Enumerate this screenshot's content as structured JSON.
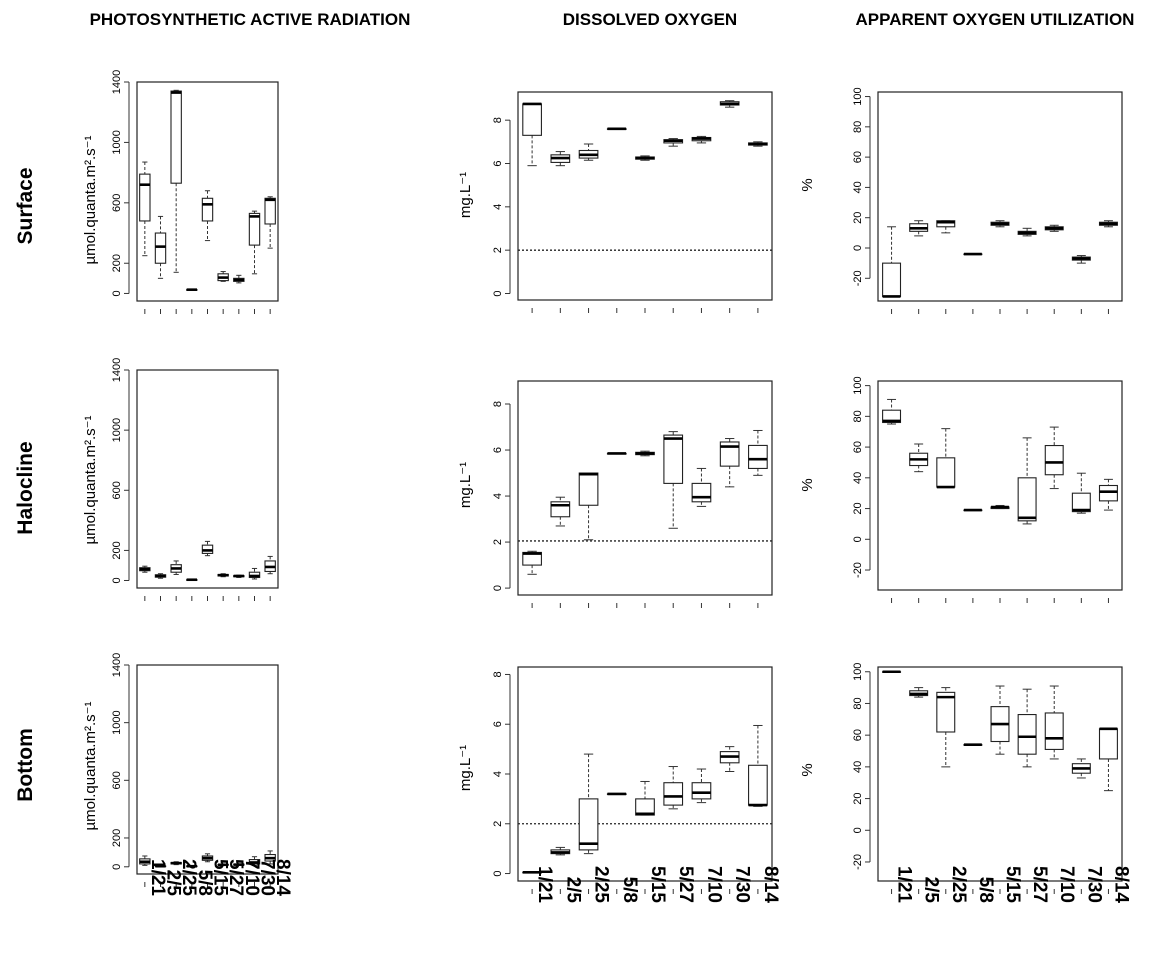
{
  "column_titles": [
    "PHOTOSYNTHETIC  ACTIVE RADIATION",
    "DISSOLVED OXYGEN",
    "APPARENT OXYGEN UTILIZATION"
  ],
  "row_titles": [
    "Surface",
    "Halocline",
    "Bottom"
  ],
  "ylabels": {
    "par": "µmol.quanta.m².s⁻¹",
    "do": "mg.L⁻¹",
    "aou": "%"
  },
  "chart_data": [
    {
      "type": "box",
      "panel": "PAR-Surface",
      "ylabel": "µmol.quanta.m².s⁻¹",
      "ylim": [
        -50,
        1400
      ],
      "yticks": [
        0,
        200,
        600,
        1000,
        1400
      ],
      "grid": false,
      "categories": [
        "1/21",
        "2/5",
        "2/25",
        "5/8",
        "5/15",
        "5/27",
        "7/10",
        "7/30",
        "8/14"
      ],
      "boxes": [
        {
          "min": 250,
          "q1": 480,
          "median": 720,
          "q3": 790,
          "max": 870
        },
        {
          "min": 100,
          "q1": 200,
          "median": 310,
          "q3": 400,
          "max": 510
        },
        {
          "min": 140,
          "q1": 730,
          "median": 1330,
          "q3": 1340,
          "max": 1345
        },
        {
          "min": 25,
          "q1": 25,
          "median": 25,
          "q3": 25,
          "max": 25
        },
        {
          "min": 350,
          "q1": 480,
          "median": 590,
          "q3": 630,
          "max": 680
        },
        {
          "min": 80,
          "q1": 85,
          "median": 105,
          "q3": 130,
          "max": 145
        },
        {
          "min": 70,
          "q1": 80,
          "median": 90,
          "q3": 100,
          "max": 120
        },
        {
          "min": 130,
          "q1": 320,
          "median": 510,
          "q3": 530,
          "max": 545
        },
        {
          "min": 300,
          "q1": 460,
          "median": 620,
          "q3": 630,
          "max": 640
        }
      ]
    },
    {
      "type": "box",
      "panel": "DO-Surface",
      "ylabel": "mg.L⁻¹",
      "ylim": [
        -0.3,
        9.3
      ],
      "yticks": [
        0,
        2,
        4,
        6,
        8
      ],
      "hline": 2,
      "grid": false,
      "categories": [
        "1/21",
        "2/5",
        "2/25",
        "5/8",
        "5/15",
        "5/27",
        "7/10",
        "7/30",
        "8/14"
      ],
      "boxes": [
        {
          "min": 5.9,
          "q1": 7.3,
          "median": 8.75,
          "q3": 8.75,
          "max": 8.75
        },
        {
          "min": 5.9,
          "q1": 6.05,
          "median": 6.25,
          "q3": 6.4,
          "max": 6.55
        },
        {
          "min": 6.15,
          "q1": 6.25,
          "median": 6.4,
          "q3": 6.6,
          "max": 6.9
        },
        {
          "min": 7.6,
          "q1": 7.6,
          "median": 7.6,
          "q3": 7.6,
          "max": 7.6
        },
        {
          "min": 6.15,
          "q1": 6.2,
          "median": 6.25,
          "q3": 6.3,
          "max": 6.35
        },
        {
          "min": 6.8,
          "q1": 6.95,
          "median": 7.05,
          "q3": 7.1,
          "max": 7.15
        },
        {
          "min": 6.95,
          "q1": 7.05,
          "median": 7.15,
          "q3": 7.2,
          "max": 7.25
        },
        {
          "min": 8.6,
          "q1": 8.7,
          "median": 8.75,
          "q3": 8.85,
          "max": 8.9
        },
        {
          "min": 6.8,
          "q1": 6.85,
          "median": 6.9,
          "q3": 6.95,
          "max": 7.0
        }
      ]
    },
    {
      "type": "box",
      "panel": "AOU-Surface",
      "ylabel": "%",
      "ylim": [
        -35,
        103
      ],
      "yticks": [
        -20,
        0,
        20,
        40,
        60,
        80,
        100
      ],
      "grid": false,
      "categories": [
        "1/21",
        "2/5",
        "2/25",
        "5/8",
        "5/15",
        "5/27",
        "7/10",
        "7/30",
        "8/14"
      ],
      "boxes": [
        {
          "min": -32,
          "q1": -32,
          "median": -32,
          "q3": -10,
          "max": 14
        },
        {
          "min": 8,
          "q1": 11,
          "median": 13,
          "q3": 16,
          "max": 18
        },
        {
          "min": 10,
          "q1": 14,
          "median": 17,
          "q3": 18,
          "max": 18
        },
        {
          "min": -4,
          "q1": -4,
          "median": -4,
          "q3": -4,
          "max": -4
        },
        {
          "min": 14,
          "q1": 15,
          "median": 16,
          "q3": 17,
          "max": 18
        },
        {
          "min": 8,
          "q1": 9,
          "median": 10,
          "q3": 11,
          "max": 13
        },
        {
          "min": 11,
          "q1": 12,
          "median": 13,
          "q3": 14,
          "max": 15
        },
        {
          "min": -10,
          "q1": -8,
          "median": -7,
          "q3": -6,
          "max": -5
        },
        {
          "min": 14,
          "q1": 15,
          "median": 16,
          "q3": 17,
          "max": 18
        }
      ]
    },
    {
      "type": "box",
      "panel": "PAR-Halocline",
      "ylabel": "µmol.quanta.m².s⁻¹",
      "ylim": [
        -50,
        1400
      ],
      "yticks": [
        0,
        200,
        600,
        1000,
        1400
      ],
      "grid": false,
      "categories": [
        "1/21",
        "2/5",
        "2/25",
        "5/8",
        "5/15",
        "5/27",
        "7/10",
        "7/30",
        "8/14"
      ],
      "boxes": [
        {
          "min": 55,
          "q1": 65,
          "median": 75,
          "q3": 85,
          "max": 95
        },
        {
          "min": 15,
          "q1": 22,
          "median": 30,
          "q3": 38,
          "max": 45
        },
        {
          "min": 40,
          "q1": 55,
          "median": 80,
          "q3": 105,
          "max": 130
        },
        {
          "min": 5,
          "q1": 5,
          "median": 5,
          "q3": 5,
          "max": 5
        },
        {
          "min": 165,
          "q1": 180,
          "median": 200,
          "q3": 235,
          "max": 260
        },
        {
          "min": 25,
          "q1": 30,
          "median": 35,
          "q3": 40,
          "max": 45
        },
        {
          "min": 20,
          "q1": 25,
          "median": 30,
          "q3": 32,
          "max": 35
        },
        {
          "min": 10,
          "q1": 20,
          "median": 30,
          "q3": 55,
          "max": 80
        },
        {
          "min": 45,
          "q1": 60,
          "median": 90,
          "q3": 130,
          "max": 160
        }
      ]
    },
    {
      "type": "box",
      "panel": "DO-Halocline",
      "ylabel": "mg.L⁻¹",
      "ylim": [
        -0.3,
        9.0
      ],
      "yticks": [
        0,
        2,
        4,
        6,
        8
      ],
      "hline": 2.05,
      "grid": false,
      "categories": [
        "1/21",
        "2/5",
        "2/25",
        "5/8",
        "5/15",
        "5/27",
        "7/10",
        "7/30",
        "8/14"
      ],
      "boxes": [
        {
          "min": 0.6,
          "q1": 1.0,
          "median": 1.5,
          "q3": 1.55,
          "max": 1.6
        },
        {
          "min": 2.7,
          "q1": 3.1,
          "median": 3.6,
          "q3": 3.75,
          "max": 3.95
        },
        {
          "min": 2.1,
          "q1": 3.6,
          "median": 4.95,
          "q3": 5.0,
          "max": 5.0
        },
        {
          "min": 5.85,
          "q1": 5.85,
          "median": 5.85,
          "q3": 5.85,
          "max": 5.85
        },
        {
          "min": 5.75,
          "q1": 5.8,
          "median": 5.85,
          "q3": 5.9,
          "max": 5.95
        },
        {
          "min": 2.6,
          "q1": 4.55,
          "median": 6.5,
          "q3": 6.65,
          "max": 6.8
        },
        {
          "min": 3.55,
          "q1": 3.75,
          "median": 3.95,
          "q3": 4.55,
          "max": 5.2
        },
        {
          "min": 4.4,
          "q1": 5.3,
          "median": 6.15,
          "q3": 6.35,
          "max": 6.5
        },
        {
          "min": 4.9,
          "q1": 5.2,
          "median": 5.6,
          "q3": 6.2,
          "max": 6.85
        }
      ]
    },
    {
      "type": "box",
      "panel": "AOU-Halocline",
      "ylabel": "%",
      "ylim": [
        -33,
        103
      ],
      "yticks": [
        -20,
        0,
        20,
        40,
        60,
        80,
        100
      ],
      "grid": false,
      "categories": [
        "1/21",
        "2/5",
        "2/25",
        "5/8",
        "5/15",
        "5/27",
        "7/10",
        "7/30",
        "8/14"
      ],
      "boxes": [
        {
          "min": 75,
          "q1": 76,
          "median": 77,
          "q3": 84,
          "max": 91
        },
        {
          "min": 44,
          "q1": 48,
          "median": 52,
          "q3": 56,
          "max": 62
        },
        {
          "min": 34,
          "q1": 34,
          "median": 34,
          "q3": 53,
          "max": 72
        },
        {
          "min": 19,
          "q1": 19,
          "median": 19,
          "q3": 19,
          "max": 19
        },
        {
          "min": 20,
          "q1": 20,
          "median": 21,
          "q3": 21,
          "max": 22
        },
        {
          "min": 10,
          "q1": 12,
          "median": 14,
          "q3": 40,
          "max": 66
        },
        {
          "min": 33,
          "q1": 42,
          "median": 50,
          "q3": 61,
          "max": 73
        },
        {
          "min": 17,
          "q1": 18,
          "median": 19,
          "q3": 30,
          "max": 43
        },
        {
          "min": 19,
          "q1": 25,
          "median": 31,
          "q3": 35,
          "max": 39
        }
      ]
    },
    {
      "type": "box",
      "panel": "PAR-Bottom",
      "ylabel": "µmol.quanta.m².s⁻¹",
      "ylim": [
        -50,
        1400
      ],
      "yticks": [
        0,
        200,
        600,
        1000,
        1400
      ],
      "grid": false,
      "categories": [
        "1/21",
        "2/5",
        "2/25",
        "5/8",
        "5/15",
        "5/27",
        "7/10",
        "7/30",
        "8/14"
      ],
      "boxes": [
        {
          "min": 10,
          "q1": 20,
          "median": 35,
          "q3": 55,
          "max": 75
        },
        {
          "min": 2,
          "q1": 3,
          "median": 4,
          "q3": 5,
          "max": 6
        },
        {
          "min": 15,
          "q1": 20,
          "median": 25,
          "q3": 30,
          "max": 35
        },
        {
          "min": 2,
          "q1": 3,
          "median": 4,
          "q3": 5,
          "max": 6
        },
        {
          "min": 35,
          "q1": 45,
          "median": 60,
          "q3": 75,
          "max": 90
        },
        {
          "min": 10,
          "q1": 12,
          "median": 14,
          "q3": 16,
          "max": 18
        },
        {
          "min": 10,
          "q1": 12,
          "median": 15,
          "q3": 18,
          "max": 20
        },
        {
          "min": 10,
          "q1": 20,
          "median": 30,
          "q3": 50,
          "max": 70
        },
        {
          "min": 20,
          "q1": 40,
          "median": 60,
          "q3": 85,
          "max": 110
        }
      ]
    },
    {
      "type": "box",
      "panel": "DO-Bottom",
      "ylabel": "mg.L⁻¹",
      "ylim": [
        -0.3,
        8.3
      ],
      "yticks": [
        0,
        2,
        4,
        6,
        8
      ],
      "hline": 2,
      "grid": false,
      "categories": [
        "1/21",
        "2/5",
        "2/25",
        "5/8",
        "5/15",
        "5/27",
        "7/10",
        "7/30",
        "8/14"
      ],
      "boxes": [
        {
          "min": 0.05,
          "q1": 0.05,
          "median": 0.05,
          "q3": 0.05,
          "max": 0.05
        },
        {
          "min": 0.75,
          "q1": 0.8,
          "median": 0.85,
          "q3": 0.95,
          "max": 1.05
        },
        {
          "min": 0.8,
          "q1": 0.95,
          "median": 1.2,
          "q3": 3.0,
          "max": 4.8
        },
        {
          "min": 3.2,
          "q1": 3.2,
          "median": 3.2,
          "q3": 3.2,
          "max": 3.2
        },
        {
          "min": 2.35,
          "q1": 2.35,
          "median": 2.4,
          "q3": 3.0,
          "max": 3.7
        },
        {
          "min": 2.6,
          "q1": 2.75,
          "median": 3.1,
          "q3": 3.65,
          "max": 4.3
        },
        {
          "min": 2.85,
          "q1": 3.0,
          "median": 3.25,
          "q3": 3.65,
          "max": 4.2
        },
        {
          "min": 4.1,
          "q1": 4.45,
          "median": 4.7,
          "q3": 4.9,
          "max": 5.1
        },
        {
          "min": 2.7,
          "q1": 2.75,
          "median": 2.75,
          "q3": 4.35,
          "max": 5.95
        }
      ]
    },
    {
      "type": "box",
      "panel": "AOU-Bottom",
      "ylabel": "%",
      "ylim": [
        -32,
        103
      ],
      "yticks": [
        -20,
        0,
        20,
        40,
        60,
        80,
        100
      ],
      "grid": false,
      "categories": [
        "1/21",
        "2/5",
        "2/25",
        "5/8",
        "5/15",
        "5/27",
        "7/10",
        "7/30",
        "8/14"
      ],
      "boxes": [
        {
          "min": 100,
          "q1": 100,
          "median": 100,
          "q3": 100,
          "max": 100
        },
        {
          "min": 84,
          "q1": 85,
          "median": 86,
          "q3": 88,
          "max": 90
        },
        {
          "min": 40,
          "q1": 62,
          "median": 84,
          "q3": 87,
          "max": 90
        },
        {
          "min": 54,
          "q1": 54,
          "median": 54,
          "q3": 54,
          "max": 54
        },
        {
          "min": 48,
          "q1": 56,
          "median": 67,
          "q3": 78,
          "max": 91
        },
        {
          "min": 40,
          "q1": 48,
          "median": 59,
          "q3": 73,
          "max": 89
        },
        {
          "min": 45,
          "q1": 51,
          "median": 58,
          "q3": 74,
          "max": 91
        },
        {
          "min": 33,
          "q1": 36,
          "median": 39,
          "q3": 42,
          "max": 45
        },
        {
          "min": 25,
          "q1": 45,
          "median": 64,
          "q3": 64,
          "max": 64
        }
      ]
    }
  ]
}
